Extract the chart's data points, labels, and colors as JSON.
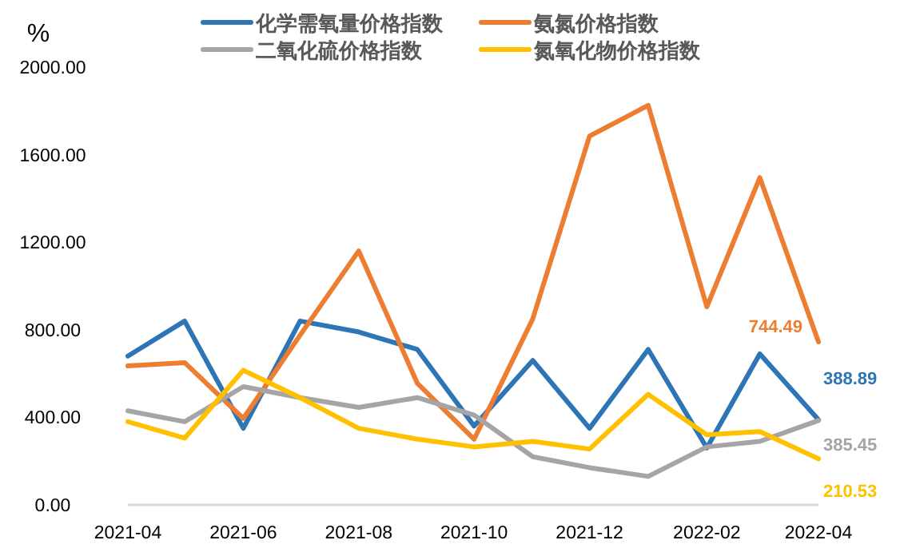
{
  "chart_data": {
    "type": "line",
    "ylabel": "%",
    "x": [
      "2021-04",
      "2021-05",
      "2021-06",
      "2021-07",
      "2021-08",
      "2021-09",
      "2021-10",
      "2021-11",
      "2021-12",
      "2022-01",
      "2022-02",
      "2022-03",
      "2022-04"
    ],
    "xlim": [
      "2021-04",
      "2022-04"
    ],
    "xticks": [
      "2021-04",
      "2021-06",
      "2021-08",
      "2021-10",
      "2021-12",
      "2022-02",
      "2022-04"
    ],
    "ylim": [
      0,
      2000
    ],
    "yticks": [
      {
        "value": 0,
        "label": "0.00"
      },
      {
        "value": 400,
        "label": "400.00"
      },
      {
        "value": 800,
        "label": "800.00"
      },
      {
        "value": 1200,
        "label": "1200.00"
      },
      {
        "value": 1600,
        "label": "1600.00"
      },
      {
        "value": 2000,
        "label": "2000.00"
      }
    ],
    "grid": false,
    "legend": "top",
    "marker": "none",
    "line_style": "solid",
    "series": [
      {
        "name": "化学需氧量价格指数",
        "color": "#2e75b6",
        "values": [
          680,
          840,
          350,
          840,
          790,
          710,
          360,
          660,
          350,
          710,
          260,
          690,
          388.89
        ],
        "value_labels": [
          null,
          null,
          null,
          null,
          null,
          null,
          null,
          null,
          null,
          null,
          null,
          null,
          "388.89"
        ]
      },
      {
        "name": "氨氮价格指数",
        "color": "#ed7d31",
        "values": [
          635,
          650,
          395,
          775,
          1160,
          555,
          300,
          850,
          1685,
          1825,
          905,
          1495,
          744.49
        ],
        "value_labels": [
          null,
          null,
          null,
          null,
          null,
          null,
          null,
          null,
          null,
          null,
          null,
          null,
          "744.49"
        ]
      },
      {
        "name": "二氧化硫价格指数",
        "color": "#a5a5a5",
        "values": [
          430,
          380,
          540,
          490,
          445,
          490,
          410,
          220,
          170,
          130,
          265,
          290,
          385.45
        ],
        "value_labels": [
          null,
          null,
          null,
          null,
          null,
          null,
          null,
          null,
          null,
          null,
          null,
          null,
          "385.45"
        ]
      },
      {
        "name": "氮氧化物价格指数",
        "color": "#ffc000",
        "values": [
          380,
          305,
          615,
          490,
          350,
          300,
          265,
          290,
          255,
          505,
          320,
          335,
          210.53
        ],
        "value_labels": [
          null,
          null,
          null,
          null,
          null,
          null,
          null,
          null,
          null,
          null,
          null,
          null,
          "210.53"
        ]
      }
    ]
  }
}
